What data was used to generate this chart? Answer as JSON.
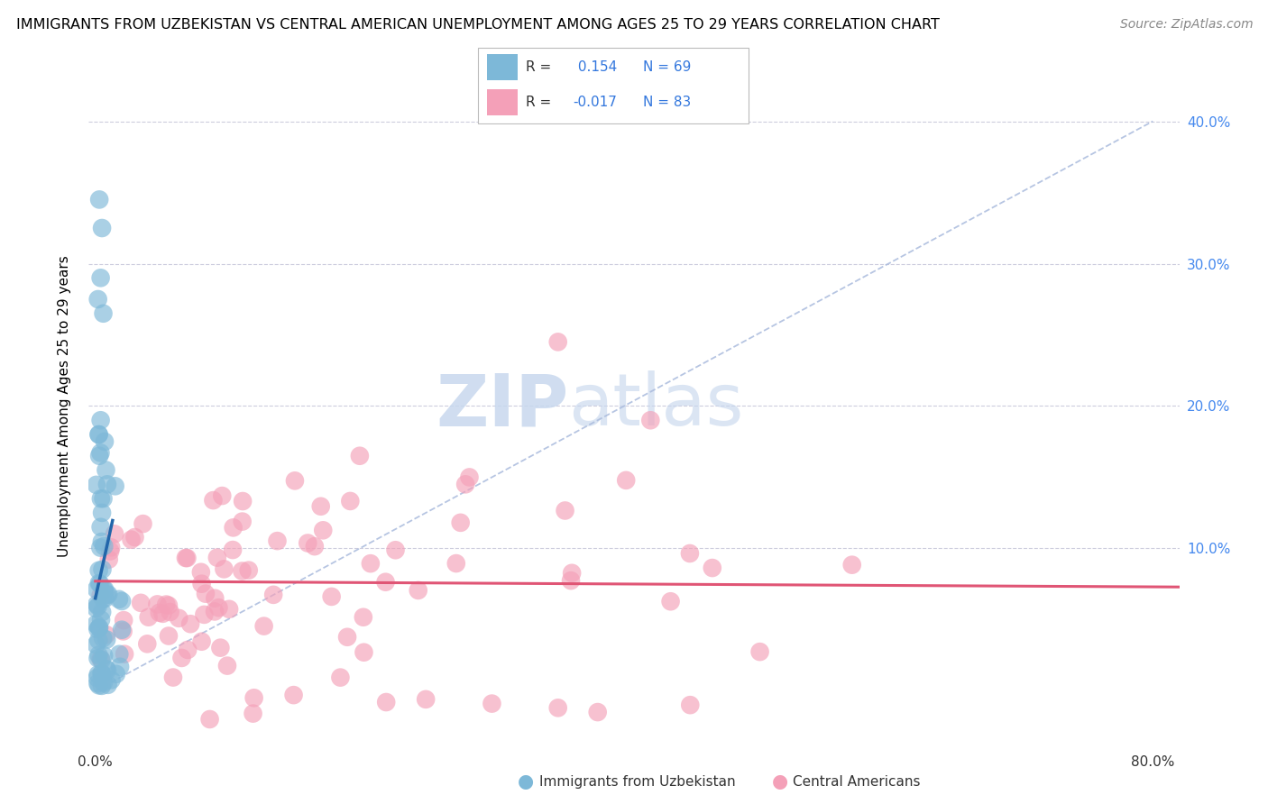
{
  "title": "IMMIGRANTS FROM UZBEKISTAN VS CENTRAL AMERICAN UNEMPLOYMENT AMONG AGES 25 TO 29 YEARS CORRELATION CHART",
  "source": "Source: ZipAtlas.com",
  "ylabel": "Unemployment Among Ages 25 to 29 years",
  "r_uzbek": 0.154,
  "n_uzbek": 69,
  "r_central": -0.017,
  "n_central": 83,
  "uzbek_color": "#7db8d8",
  "central_color": "#f4a0b8",
  "uzbek_line_color": "#2266aa",
  "central_line_color": "#e05575",
  "diag_color": "#aabbdd",
  "legend_label_uzbek": "Immigrants from Uzbekistan",
  "legend_label_central": "Central Americans",
  "x_tick_labels": [
    "0.0%",
    "",
    "",
    "",
    "",
    "",
    "",
    "",
    "80.0%"
  ],
  "y_tick_labels": [
    "",
    "10.0%",
    "20.0%",
    "30.0%",
    "40.0%"
  ],
  "xlim": [
    -0.005,
    0.82
  ],
  "ylim": [
    -0.04,
    0.44
  ]
}
